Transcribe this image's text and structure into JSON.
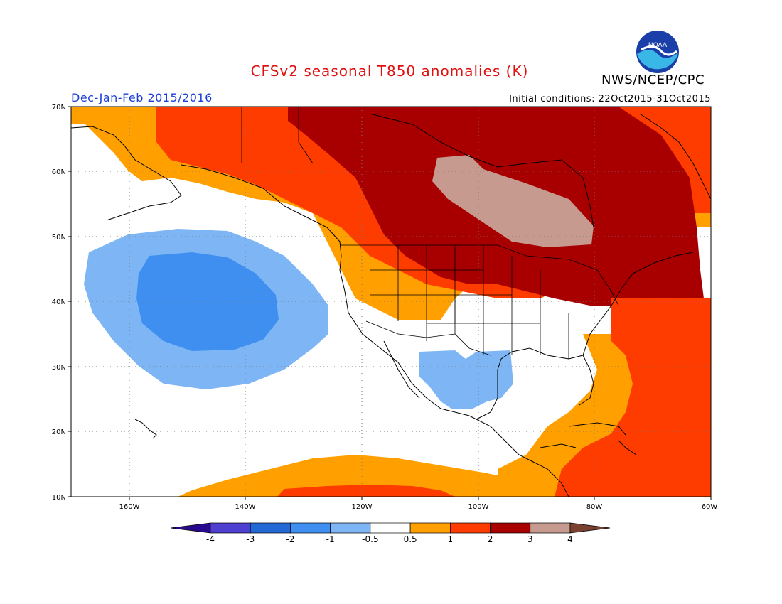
{
  "title": "CFSv2 seasonal T850 anomalies (K)",
  "organization": "NWS/NCEP/CPC",
  "logo_text": "NOAA",
  "season": "Dec-Jan-Feb 2015/2016",
  "initial_conditions": "Initial conditions: 22Oct2015-31Oct2015",
  "map": {
    "lat_labels": [
      "70N",
      "60N",
      "50N",
      "40N",
      "30N",
      "20N",
      "10N"
    ],
    "lon_labels": [
      "160W",
      "140W",
      "120W",
      "100W",
      "80W",
      "60W"
    ],
    "lat_range": [
      10,
      70
    ],
    "lon_range": [
      -170,
      -60
    ]
  },
  "colorbar": {
    "labels": [
      "-4",
      "-3",
      "-2",
      "-1",
      "-0.5",
      "0.5",
      "1",
      "2",
      "3",
      "4"
    ],
    "colors": [
      "#2a0a8c",
      "#4f3fd0",
      "#2369d6",
      "#3f8ff0",
      "#7eb6f5",
      "#ffffff",
      "#ffa000",
      "#ff3c00",
      "#a80000",
      "#c69a8e",
      "#7a4030"
    ]
  }
}
